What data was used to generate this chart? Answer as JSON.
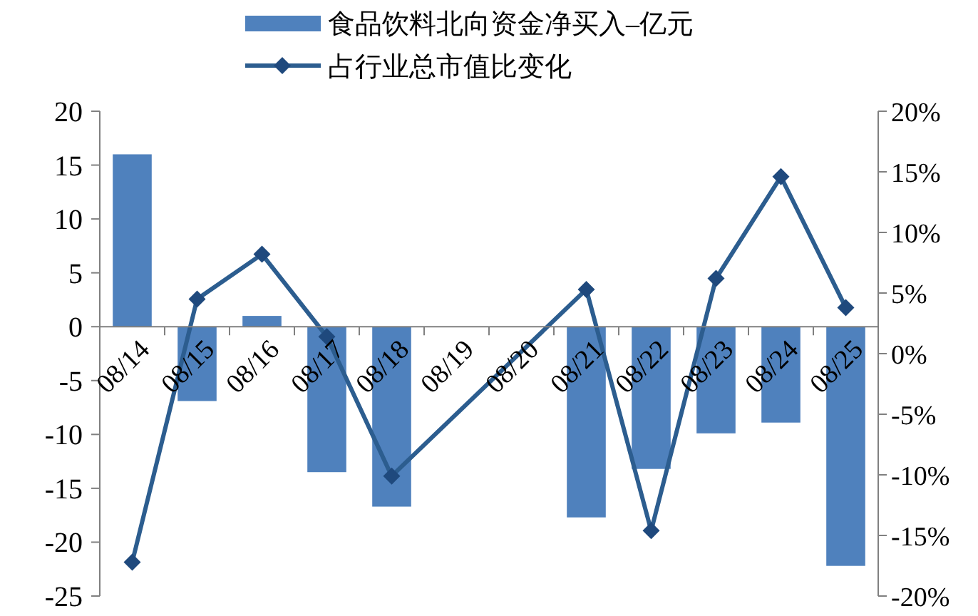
{
  "chart_data": {
    "type": "bar",
    "categories": [
      "08/14",
      "08/15",
      "08/16",
      "08/17",
      "08/18",
      "08/19",
      "08/20",
      "08/21",
      "08/22",
      "08/23",
      "08/24",
      "08/25"
    ],
    "series": [
      {
        "name": "食品饮料北向资金净买入–亿元",
        "color": "#4f81bd",
        "values": [
          16.0,
          -6.9,
          1.0,
          -13.5,
          -16.7,
          null,
          null,
          -17.7,
          -13.2,
          -9.9,
          -8.9,
          -22.2
        ]
      },
      {
        "name": "占行业总市值比变化",
        "type": "line",
        "axis": "y2",
        "color": "#2c5d8f",
        "values": [
          -17.2,
          4.5,
          8.2,
          1.4,
          -10.1,
          null,
          null,
          5.3,
          -14.6,
          6.2,
          14.6,
          3.8
        ]
      }
    ],
    "ylim": [
      -25,
      20
    ],
    "yticks": [
      -25,
      -20,
      -15,
      -10,
      -5,
      0,
      5,
      10,
      15,
      20
    ],
    "y2lim": [
      -20,
      20
    ],
    "y2ticks": [
      {
        "value": -20,
        "label": "-20%"
      },
      {
        "value": -15,
        "label": "-15%"
      },
      {
        "value": -10,
        "label": "-10%"
      },
      {
        "value": -5,
        "label": "-5%"
      },
      {
        "value": 0,
        "label": "0%"
      },
      {
        "value": 5,
        "label": "5%"
      },
      {
        "value": 10,
        "label": "10%"
      },
      {
        "value": 15,
        "label": "15%"
      },
      {
        "value": 20,
        "label": "20%"
      }
    ],
    "marker": "diamond",
    "legend": "top",
    "grid": false
  }
}
